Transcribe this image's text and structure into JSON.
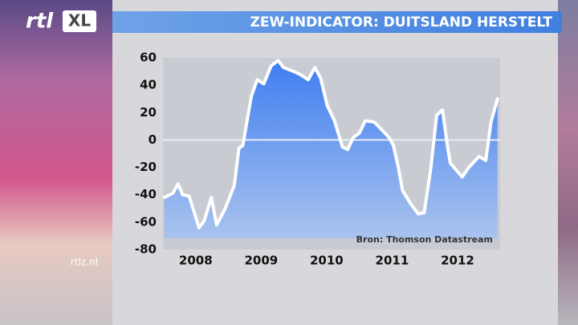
{
  "logo": "rtl",
  "logo_badge": "XL",
  "site": "rtlz.nl",
  "chart_data": {
    "type": "area",
    "title": "ZEW-INDICATOR: DUITSLAND HERSTELT",
    "source": "Bron: Thomson Datastream",
    "x": [
      2008.02,
      2008.15,
      2008.23,
      2008.3,
      2008.4,
      2008.55,
      2008.63,
      2008.74,
      2008.82,
      2008.95,
      2009.09,
      2009.16,
      2009.22,
      2009.35,
      2009.44,
      2009.54,
      2009.65,
      2009.76,
      2009.84,
      2010.0,
      2010.09,
      2010.22,
      2010.32,
      2010.41,
      2010.51,
      2010.62,
      2010.74,
      2010.82,
      2010.91,
      2011.0,
      2011.09,
      2011.23,
      2011.33,
      2011.45,
      2011.52,
      2011.59,
      2011.66,
      2011.79,
      2011.9,
      2011.99,
      2012.09,
      2012.18,
      2012.27,
      2012.35,
      2012.39,
      2012.48,
      2012.57,
      2012.67,
      2012.83,
      2012.93,
      2013.01,
      2013.11
    ],
    "values": [
      -42,
      -39,
      -32,
      -40,
      -41,
      -64,
      -59,
      -42,
      -62,
      -50,
      -33,
      -6,
      -4,
      32,
      44,
      41,
      54,
      58,
      53,
      50,
      48,
      44,
      53,
      45,
      25,
      14,
      -5,
      -7,
      2,
      5,
      14,
      13,
      8,
      2,
      -4,
      -19,
      -37,
      -47,
      -54,
      -53,
      -21,
      18,
      22,
      -6,
      -17,
      -22,
      -27,
      -20,
      -12,
      -15,
      13,
      30
    ],
    "color": "#ffffff",
    "fill": "#4f86e8",
    "xlim": [
      2008,
      2013.15
    ],
    "xticks": [
      {
        "value": 2008.5,
        "label": "2008"
      },
      {
        "value": 2009.5,
        "label": "2009"
      },
      {
        "value": 2010.5,
        "label": "2010"
      },
      {
        "value": 2011.5,
        "label": "2011"
      },
      {
        "value": 2012.5,
        "label": "2012"
      }
    ],
    "ylim": [
      -80,
      60
    ],
    "yticks": [
      -80,
      -60,
      -40,
      -20,
      0,
      20,
      40,
      60
    ],
    "zero_line": true
  }
}
